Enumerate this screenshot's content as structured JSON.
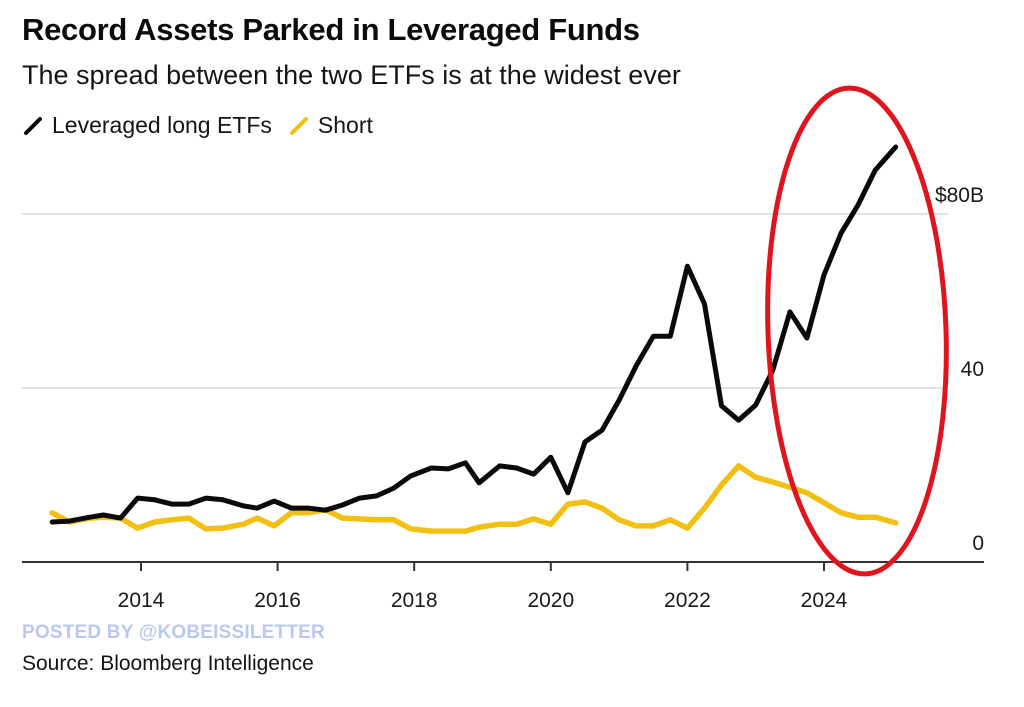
{
  "title": "Record Assets Parked in Leveraged Funds",
  "subtitle": "The spread between the two ETFs is at the widest ever",
  "watermark": "POSTED BY @KOBEISSILETTER",
  "source": "Source: Bloomberg Intelligence",
  "annotation": {
    "type": "ellipse",
    "color": "#e0141e",
    "note": "red hand-drawn ellipse highlighting 2023-2025 surge"
  },
  "chart_data": {
    "type": "line",
    "title": "Record Assets Parked in Leveraged Funds",
    "subtitle": "The spread between the two ETFs is at the widest ever",
    "xlabel": "",
    "ylabel": "",
    "xlim": [
      2012.35,
      2026.45
    ],
    "ylim": [
      0,
      95
    ],
    "grid": true,
    "legend": "top-left",
    "y_ticks": [
      {
        "value": 0,
        "label": "0"
      },
      {
        "value": 40,
        "label": "40"
      },
      {
        "value": 80,
        "label": "$80B"
      }
    ],
    "x_ticks": [
      {
        "value": 2014,
        "label": "2014"
      },
      {
        "value": 2016,
        "label": "2016"
      },
      {
        "value": 2018,
        "label": "2018"
      },
      {
        "value": 2020,
        "label": "2020"
      },
      {
        "value": 2022,
        "label": "2022"
      },
      {
        "value": 2024,
        "label": "2024"
      }
    ],
    "x": [
      2012.7,
      2012.95,
      2013.25,
      2013.45,
      2013.7,
      2013.95,
      2014.2,
      2014.45,
      2014.7,
      2014.95,
      2015.2,
      2015.5,
      2015.7,
      2015.95,
      2016.2,
      2016.45,
      2016.7,
      2016.95,
      2017.2,
      2017.45,
      2017.7,
      2017.95,
      2018.25,
      2018.5,
      2018.75,
      2018.95,
      2019.25,
      2019.5,
      2019.75,
      2020.0,
      2020.25,
      2020.5,
      2020.75,
      2021.0,
      2021.25,
      2021.5,
      2021.75,
      2022.0,
      2022.25,
      2022.5,
      2022.75,
      2023.0,
      2023.25,
      2023.5,
      2023.75,
      2024.0,
      2024.25,
      2024.5,
      2024.75,
      2025.05
    ],
    "series": [
      {
        "name": "Leveraged long ETFs",
        "color": "#0a0a0a",
        "values": [
          9.2,
          9.4,
          10.3,
          10.8,
          10.1,
          14.7,
          14.3,
          13.3,
          13.3,
          14.7,
          14.3,
          12.9,
          12.4,
          14.0,
          12.4,
          12.4,
          11.9,
          13.1,
          14.7,
          15.2,
          17.0,
          19.8,
          21.6,
          21.4,
          22.8,
          18.2,
          22.1,
          21.6,
          20.2,
          24.1,
          15.9,
          27.6,
          30.3,
          37.2,
          45.1,
          51.9,
          51.9,
          68.0,
          59.3,
          35.9,
          32.6,
          36.1,
          44.1,
          57.5,
          51.5,
          66.0,
          75.6,
          82.1,
          90.1,
          95.4
        ]
      },
      {
        "name": "Short",
        "color": "#f2c012",
        "values": [
          11.3,
          9.2,
          10.1,
          10.3,
          10.1,
          7.8,
          9.2,
          9.7,
          10.1,
          7.6,
          7.8,
          8.7,
          10.1,
          8.3,
          11.3,
          11.3,
          12.0,
          10.1,
          9.9,
          9.7,
          9.7,
          7.6,
          7.1,
          7.1,
          7.1,
          8.0,
          8.7,
          8.7,
          9.9,
          8.7,
          13.3,
          13.8,
          12.4,
          9.7,
          8.3,
          8.3,
          9.7,
          7.8,
          12.4,
          17.7,
          22.1,
          19.5,
          18.4,
          17.2,
          15.9,
          13.6,
          11.3,
          10.3,
          10.3,
          9.0
        ]
      }
    ]
  }
}
